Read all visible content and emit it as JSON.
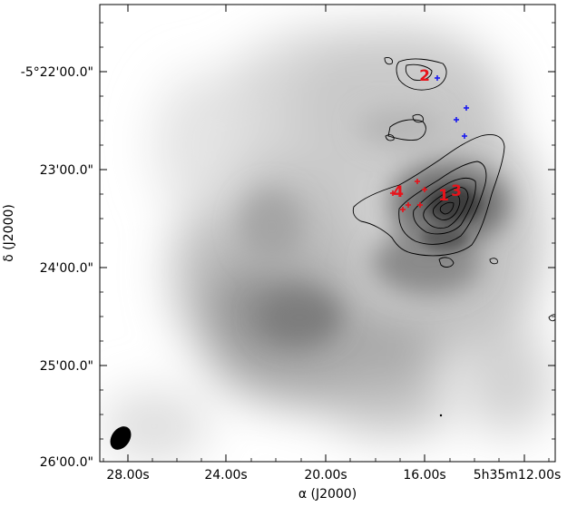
{
  "figure": {
    "x_axis_label": "α (J2000)",
    "y_axis_label": "δ (J2000)",
    "x_ticks": [
      "28.00s",
      "24.00s",
      "20.00s",
      "16.00s",
      "5h35m12.00s"
    ],
    "y_ticks": [
      "-5°22'00.0\"",
      "23'00.0\"",
      "24'00.0\"",
      "25'00.0\"",
      "26'00.0\""
    ],
    "source_labels": [
      "2",
      "4",
      "1",
      "3"
    ],
    "colors": {
      "label_red": "#e8121a",
      "marker_blue": "#1a1aee",
      "contour": "#000000",
      "background": "#ffffff"
    }
  }
}
